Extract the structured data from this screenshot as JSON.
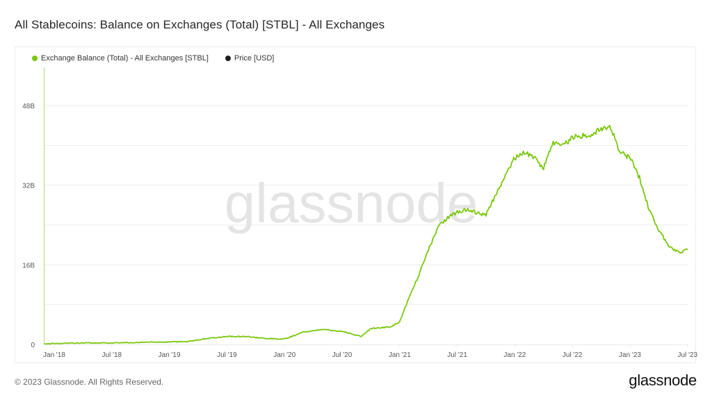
{
  "title": "All Stablecoins: Balance on Exchanges (Total) [STBL] - All Exchanges",
  "legend": [
    {
      "label": "Exchange Balance (Total) - All Exchanges [STBL]",
      "color": "#7ac70c"
    },
    {
      "label": "Price [USD]",
      "color": "#1f1f1f"
    }
  ],
  "watermark": "glassnode",
  "footer": {
    "copyright": "© 2023 Glassnode. All Rights Reserved.",
    "logo": "glassnode"
  },
  "colors": {
    "series": "#7ac70c",
    "grid": "#eeeeee",
    "axis_text": "#555555",
    "watermark": "#e4e4e4"
  },
  "chart_data": {
    "type": "line",
    "title": "All Stablecoins: Balance on Exchanges (Total) [STBL] - All Exchanges",
    "xlabel": "",
    "ylabel": "",
    "y_ticks": [
      "0",
      "16B",
      "32B",
      "48B"
    ],
    "y_tick_values": [
      0,
      16,
      32,
      48
    ],
    "ylim": [
      0,
      55
    ],
    "x_ticks": [
      "Jan '18",
      "Jul '18",
      "Jan '19",
      "Jul '19",
      "Jan '20",
      "Jul '20",
      "Jan '21",
      "Jul '21",
      "Jan '22",
      "Jul '22",
      "Jan '23",
      "Jul '23"
    ],
    "grid": true,
    "legend_position": "top-left",
    "series": [
      {
        "name": "Exchange Balance (Total) - All Exchanges [STBL]",
        "unit": "billions USD",
        "x": [
          "2017-12",
          "2018-01",
          "2018-04",
          "2018-07",
          "2018-10",
          "2019-01",
          "2019-03",
          "2019-05",
          "2019-07",
          "2019-09",
          "2019-11",
          "2020-01",
          "2020-03",
          "2020-05",
          "2020-07",
          "2020-09",
          "2020-10",
          "2020-12",
          "2021-01",
          "2021-02",
          "2021-03",
          "2021-04",
          "2021-05",
          "2021-06",
          "2021-07",
          "2021-08",
          "2021-09",
          "2021-10",
          "2021-11",
          "2021-12",
          "2022-01",
          "2022-02",
          "2022-03",
          "2022-04",
          "2022-05",
          "2022-06",
          "2022-07",
          "2022-08",
          "2022-09",
          "2022-10",
          "2022-11",
          "2022-12",
          "2023-01",
          "2023-02",
          "2023-03",
          "2023-04",
          "2023-05",
          "2023-06",
          "2023-07"
        ],
        "values": [
          0.1,
          0.2,
          0.3,
          0.3,
          0.4,
          0.5,
          0.6,
          1.2,
          1.6,
          1.6,
          1.2,
          1.1,
          2.5,
          3.0,
          2.6,
          1.6,
          3.2,
          3.5,
          4.5,
          9.5,
          14.0,
          19.0,
          23.5,
          25.5,
          26.5,
          27.0,
          26.5,
          26.0,
          30.0,
          34.0,
          37.5,
          38.5,
          37.5,
          35.5,
          40.5,
          40.0,
          41.5,
          42.0,
          42.0,
          43.5,
          43.5,
          38.5,
          37.5,
          33.5,
          27.0,
          23.0,
          20.0,
          18.5,
          19.0
        ]
      },
      {
        "name": "Price [USD]",
        "values": []
      }
    ]
  }
}
